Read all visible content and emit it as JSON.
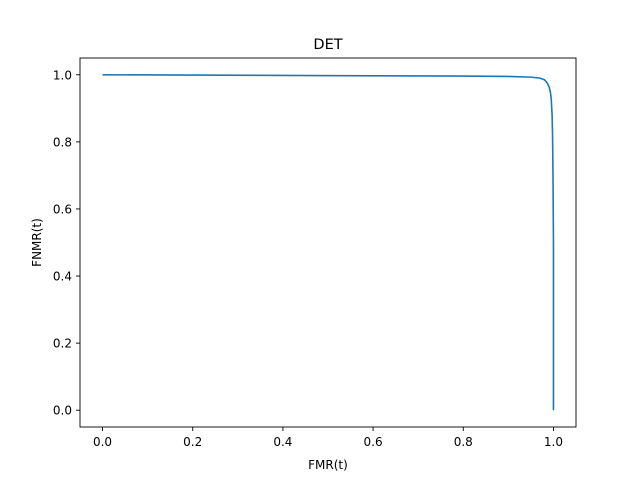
{
  "chart_data": {
    "type": "line",
    "title": "DET",
    "xlabel": "FMR(t)",
    "ylabel": "FNMR(t)",
    "xlim": [
      -0.05,
      1.05
    ],
    "ylim": [
      -0.05,
      1.05
    ],
    "xticks": [
      0.0,
      0.2,
      0.4,
      0.6,
      0.8,
      1.0
    ],
    "yticks": [
      0.0,
      0.2,
      0.4,
      0.6,
      0.8,
      1.0
    ],
    "xtick_labels": [
      "0.0",
      "0.2",
      "0.4",
      "0.6",
      "0.8",
      "1.0"
    ],
    "ytick_labels": [
      "0.0",
      "0.2",
      "0.4",
      "0.6",
      "0.8",
      "1.0"
    ],
    "grid": false,
    "series": [
      {
        "color": "#1f77b4",
        "x": [
          0.0,
          0.2,
          0.4,
          0.6,
          0.8,
          0.9,
          0.95,
          0.97,
          0.98,
          0.985,
          0.99,
          0.993,
          0.995,
          0.997,
          0.998,
          0.999,
          1.0,
          1.0,
          1.0
        ],
        "y": [
          1.0,
          0.999,
          0.998,
          0.997,
          0.996,
          0.995,
          0.993,
          0.99,
          0.985,
          0.978,
          0.965,
          0.95,
          0.93,
          0.88,
          0.82,
          0.7,
          0.5,
          0.2,
          0.0
        ]
      }
    ]
  }
}
